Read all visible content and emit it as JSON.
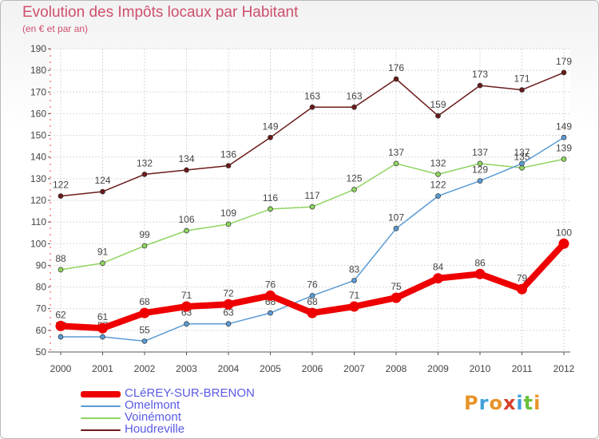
{
  "title": "Evolution des Impôts locaux par Habitant",
  "subtitle": "(en € et par an)",
  "logo": [
    "P",
    "r",
    "o",
    "x",
    "i",
    "t",
    "i"
  ],
  "logo_colors": [
    "#e8942a",
    "#3fa0d8",
    "#e8942a",
    "#d53f2a",
    "#3fa0d8",
    "#6bbf3a",
    "#e8942a"
  ],
  "chart_data": {
    "type": "line",
    "x": [
      "2000",
      "2001",
      "2002",
      "2003",
      "2004",
      "2005",
      "2006",
      "2007",
      "2008",
      "2009",
      "2010",
      "2011",
      "2012"
    ],
    "ylim": [
      50,
      190
    ],
    "yticks": [
      50,
      60,
      70,
      80,
      90,
      100,
      110,
      120,
      130,
      140,
      150,
      160,
      170,
      180,
      190
    ],
    "grid": true,
    "legend_position": "bottom-left",
    "series": [
      {
        "name": "Houdreville",
        "color": "#6b1a1a",
        "emphasis": false,
        "values": [
          122,
          124,
          132,
          134,
          136,
          149,
          163,
          163,
          176,
          159,
          173,
          171,
          179
        ]
      },
      {
        "name": "Voinémont",
        "color": "#8fd460",
        "emphasis": false,
        "values": [
          88,
          91,
          99,
          106,
          109,
          116,
          117,
          125,
          137,
          132,
          137,
          135,
          139
        ]
      },
      {
        "name": "Omelmont",
        "color": "#5a9bd5",
        "emphasis": false,
        "values": [
          57,
          57,
          55,
          63,
          63,
          68,
          76,
          83,
          107,
          122,
          129,
          137,
          149
        ]
      },
      {
        "name": "CLéREY-SUR-BRENON",
        "color": "#ee0000",
        "emphasis": true,
        "values": [
          62,
          61,
          68,
          71,
          72,
          76,
          68,
          71,
          75,
          84,
          86,
          79,
          100
        ]
      }
    ],
    "legend_order": [
      "CLéREY-SUR-BRENON",
      "Omelmont",
      "Voinémont",
      "Houdreville"
    ]
  }
}
